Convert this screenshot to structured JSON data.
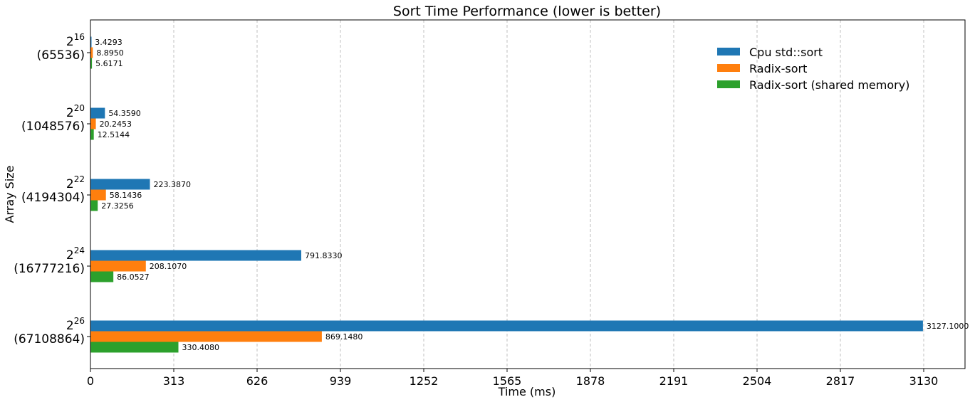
{
  "chart_data": {
    "type": "bar",
    "orientation": "horizontal",
    "title": "Sort Time Performance (lower is better)",
    "xlabel": "Time (ms)",
    "ylabel": "Array Size",
    "xlim": [
      0,
      3130
    ],
    "xticks": [
      "0",
      "313",
      "626",
      "939",
      "1252",
      "1565",
      "1878",
      "2191",
      "2504",
      "2817",
      "3130"
    ],
    "grid": "x-dashed",
    "legend_position": "top-right",
    "categories": [
      {
        "base": "2",
        "exp": "16",
        "value": "(65536)"
      },
      {
        "base": "2",
        "exp": "20",
        "value": "(1048576)"
      },
      {
        "base": "2",
        "exp": "22",
        "value": "(4194304)"
      },
      {
        "base": "2",
        "exp": "24",
        "value": "(16777216)"
      },
      {
        "base": "2",
        "exp": "26",
        "value": "(67108864)"
      }
    ],
    "series": [
      {
        "name": "Cpu std::sort",
        "color": "#1f77b4",
        "values": [
          3.4293,
          54.359,
          223.387,
          791.833,
          3127.1
        ],
        "labels": [
          "3.4293",
          "54.3590",
          "223.3870",
          "791.8330",
          "3127.1000"
        ]
      },
      {
        "name": "Radix-sort",
        "color": "#ff7f0e",
        "values": [
          8.895,
          20.2453,
          58.1436,
          208.107,
          869.148
        ],
        "labels": [
          "8.8950",
          "20.2453",
          "58.1436",
          "208.1070",
          "869.1480"
        ]
      },
      {
        "name": "Radix-sort (shared memory)",
        "color": "#2ca02c",
        "values": [
          5.6171,
          12.5144,
          27.3256,
          86.0527,
          330.408
        ],
        "labels": [
          "5.6171",
          "12.5144",
          "27.3256",
          "86.0527",
          "330.4080"
        ]
      }
    ]
  }
}
